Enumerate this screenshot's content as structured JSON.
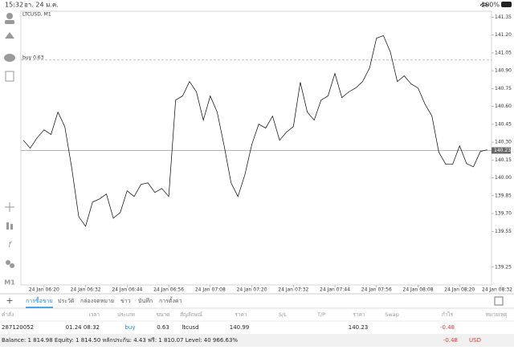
{
  "status_bar": {
    "time": "15:32",
    "date": "อา. 24 ม.ค.",
    "battery": "100%"
  },
  "toolbar": {
    "timeframe": "M1"
  },
  "chart_data": {
    "type": "line",
    "title": "LTCUSD, M1",
    "color": "#000000",
    "values": [
      140.316,
      140.249,
      140.336,
      140.404,
      140.364,
      140.553,
      140.431,
      140.08,
      139.674,
      139.593,
      139.796,
      139.823,
      139.864,
      139.661,
      139.708,
      139.891,
      139.843,
      139.945,
      139.958,
      139.877,
      139.911,
      139.843,
      140.654,
      140.688,
      140.809,
      140.722,
      140.485,
      140.688,
      140.553,
      140.269,
      139.958,
      139.843,
      140.026,
      140.282,
      140.451,
      140.418,
      140.519,
      140.316,
      140.384,
      140.431,
      140.803,
      140.553,
      140.485,
      140.654,
      140.688,
      140.877,
      140.674,
      140.722,
      140.755,
      140.809,
      140.924,
      141.174,
      141.195,
      141.059,
      140.809,
      140.857,
      140.789,
      140.755,
      140.62,
      140.519,
      140.215,
      140.114,
      140.114,
      140.269,
      140.12,
      140.093,
      140.222,
      140.235
    ],
    "xlim": [
      0,
      69
    ],
    "xticks": [
      {
        "value": 3,
        "label": "24 Jan 06:20"
      },
      {
        "value": 9,
        "label": "24 Jan 06:32"
      },
      {
        "value": 15,
        "label": "24 Jan 06:44"
      },
      {
        "value": 21,
        "label": "24 Jan 06:56"
      },
      {
        "value": 27,
        "label": "24 Jan 07:08"
      },
      {
        "value": 33,
        "label": "24 Jan 07:20"
      },
      {
        "value": 39,
        "label": "24 Jan 07:32"
      },
      {
        "value": 45,
        "label": "24 Jan 07:44"
      },
      {
        "value": 51,
        "label": "24 Jan 07:56"
      },
      {
        "value": 57,
        "label": "24 Jan 08:08"
      },
      {
        "value": 63,
        "label": "24 Jan 08:20"
      },
      {
        "value": 69,
        "label": "24 Jan 08:32"
      }
    ],
    "ylim": [
      139.1,
      141.4
    ],
    "yticks": [
      141.35,
      {
        "value": 141.2,
        "label": "141.20"
      },
      141.05,
      {
        "value": 140.9,
        "label": "140.90"
      },
      140.75,
      {
        "value": 140.6,
        "label": "140.60"
      },
      140.45,
      {
        "value": 140.3,
        "label": "140.30"
      },
      140.15,
      {
        "value": 140.0,
        "label": "140.00"
      },
      139.85,
      {
        "value": 139.7,
        "label": "139.70"
      },
      139.55,
      139.25
    ],
    "current_price": 140.23,
    "order_line": {
      "value": 140.99,
      "label": "buy 0.63"
    }
  },
  "tabs": [
    "การซื้อขาย",
    "ประวัติ",
    "กล่องจดหมาย",
    "ข่าว",
    "บันทึก",
    "การตั้งค่า"
  ],
  "table": {
    "header": [
      "คำสั่ง",
      "เวลา",
      "ประเภท",
      "ขนาด",
      "สัญลักษณ์",
      "ราคา",
      "S/L",
      "T/P",
      "ราคา",
      "Swap",
      "กำไร",
      "หมายเหตุ"
    ],
    "row": {
      "order": "287120052",
      "time": "01.24 08:32",
      "type": "buy",
      "size": "0.63",
      "symbol": "ltcusd",
      "open_price": "140.99",
      "price": "140.23",
      "profit": "-0.48"
    }
  },
  "footer": {
    "balance": "Balance: 1 814.98 Equity: 1 814.50 หลักประกัน: 4.43 ฟรี: 1 810.07 Level: 40 966.63%",
    "profit": "-0.48",
    "currency": "USD"
  }
}
